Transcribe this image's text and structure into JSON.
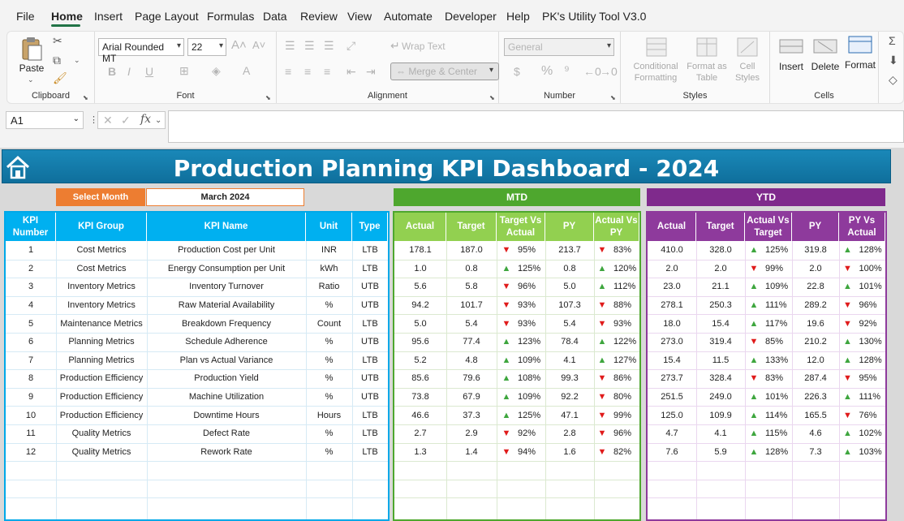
{
  "menu": [
    "File",
    "Home",
    "Insert",
    "Page Layout",
    "Formulas",
    "Data",
    "Review",
    "View",
    "Automate",
    "Developer",
    "Help",
    "PK's Utility Tool V3.0"
  ],
  "ribbon": {
    "clipboard": {
      "paste": "Paste",
      "label": "Clipboard"
    },
    "font": {
      "family": "Arial Rounded MT",
      "size": "22",
      "label": "Font"
    },
    "alignment": {
      "wrap": "Wrap Text",
      "merge": "Merge & Center",
      "label": "Alignment"
    },
    "number": {
      "format": "General",
      "label": "Number"
    },
    "styles": {
      "cond": "Conditional Formatting",
      "cond1": "Conditional",
      "cond2": "Formatting",
      "fmtas1": "Format as",
      "fmtas2": "Table",
      "cell1": "Cell",
      "cell2": "Styles",
      "label": "Styles"
    },
    "cells": {
      "insert": "Insert",
      "delete": "Delete",
      "format": "Format",
      "label": "Cells"
    }
  },
  "formula": {
    "namebox": "A1",
    "fx": "fx",
    "value": ""
  },
  "dashboard": {
    "title": "Production Planning KPI Dashboard - 2024",
    "select_label": "Select Month",
    "select_value": "March 2024",
    "mtd_title": "MTD",
    "ytd_title": "YTD",
    "colors": {
      "blue": "#00b0f0",
      "green": "#92d050",
      "green_dark": "#4ea72e",
      "purple": "#7f2a8c",
      "purple_hdr": "#8e3a9c",
      "orange": "#ed7d31",
      "banner": "#1582b3",
      "up": "#3ea63e",
      "down": "#e01b1b"
    },
    "left_headers": [
      "KPI Number",
      "KPI Group",
      "KPI Name",
      "Unit",
      "Type"
    ],
    "mtd_headers": [
      "Actual",
      "Target",
      "Target Vs Actual",
      "PY",
      "Actual Vs PY"
    ],
    "ytd_headers": [
      "Actual",
      "Target",
      "Actual Vs Target",
      "PY",
      "PY Vs Actual"
    ],
    "rows": [
      {
        "num": "1",
        "group": "Cost Metrics",
        "name": "Production Cost per Unit",
        "unit": "INR",
        "type": "LTB",
        "m_act": "178.1",
        "m_tgt": "187.0",
        "m_tva_dir": "down",
        "m_tva": "95%",
        "m_py": "213.7",
        "m_avp_dir": "down",
        "m_avp": "83%",
        "y_act": "410.0",
        "y_tgt": "328.0",
        "y_avt_dir": "up",
        "y_avt": "125%",
        "y_py": "319.8",
        "y_pva_dir": "up",
        "y_pva": "128%"
      },
      {
        "num": "2",
        "group": "Cost Metrics",
        "name": "Energy Consumption per Unit",
        "unit": "kWh",
        "type": "LTB",
        "m_act": "1.0",
        "m_tgt": "0.8",
        "m_tva_dir": "up",
        "m_tva": "125%",
        "m_py": "0.8",
        "m_avp_dir": "up",
        "m_avp": "120%",
        "y_act": "2.0",
        "y_tgt": "2.0",
        "y_avt_dir": "down",
        "y_avt": "99%",
        "y_py": "2.0",
        "y_pva_dir": "down",
        "y_pva": "100%"
      },
      {
        "num": "3",
        "group": "Inventory Metrics",
        "name": "Inventory Turnover",
        "unit": "Ratio",
        "type": "UTB",
        "m_act": "5.6",
        "m_tgt": "5.8",
        "m_tva_dir": "down",
        "m_tva": "96%",
        "m_py": "5.0",
        "m_avp_dir": "up",
        "m_avp": "112%",
        "y_act": "23.0",
        "y_tgt": "21.1",
        "y_avt_dir": "up",
        "y_avt": "109%",
        "y_py": "22.8",
        "y_pva_dir": "up",
        "y_pva": "101%"
      },
      {
        "num": "4",
        "group": "Inventory Metrics",
        "name": "Raw Material Availability",
        "unit": "%",
        "type": "UTB",
        "m_act": "94.2",
        "m_tgt": "101.7",
        "m_tva_dir": "down",
        "m_tva": "93%",
        "m_py": "107.3",
        "m_avp_dir": "down",
        "m_avp": "88%",
        "y_act": "278.1",
        "y_tgt": "250.3",
        "y_avt_dir": "up",
        "y_avt": "111%",
        "y_py": "289.2",
        "y_pva_dir": "down",
        "y_pva": "96%"
      },
      {
        "num": "5",
        "group": "Maintenance Metrics",
        "name": "Breakdown Frequency",
        "unit": "Count",
        "type": "LTB",
        "m_act": "5.0",
        "m_tgt": "5.4",
        "m_tva_dir": "down",
        "m_tva": "93%",
        "m_py": "5.4",
        "m_avp_dir": "down",
        "m_avp": "93%",
        "y_act": "18.0",
        "y_tgt": "15.4",
        "y_avt_dir": "up",
        "y_avt": "117%",
        "y_py": "19.6",
        "y_pva_dir": "down",
        "y_pva": "92%"
      },
      {
        "num": "6",
        "group": "Planning Metrics",
        "name": "Schedule Adherence",
        "unit": "%",
        "type": "UTB",
        "m_act": "95.6",
        "m_tgt": "77.4",
        "m_tva_dir": "up",
        "m_tva": "123%",
        "m_py": "78.4",
        "m_avp_dir": "up",
        "m_avp": "122%",
        "y_act": "273.0",
        "y_tgt": "319.4",
        "y_avt_dir": "down",
        "y_avt": "85%",
        "y_py": "210.2",
        "y_pva_dir": "up",
        "y_pva": "130%"
      },
      {
        "num": "7",
        "group": "Planning Metrics",
        "name": "Plan vs Actual Variance",
        "unit": "%",
        "type": "LTB",
        "m_act": "5.2",
        "m_tgt": "4.8",
        "m_tva_dir": "up",
        "m_tva": "109%",
        "m_py": "4.1",
        "m_avp_dir": "up",
        "m_avp": "127%",
        "y_act": "15.4",
        "y_tgt": "11.5",
        "y_avt_dir": "up",
        "y_avt": "133%",
        "y_py": "12.0",
        "y_pva_dir": "up",
        "y_pva": "128%"
      },
      {
        "num": "8",
        "group": "Production Efficiency",
        "name": "Production Yield",
        "unit": "%",
        "type": "UTB",
        "m_act": "85.6",
        "m_tgt": "79.6",
        "m_tva_dir": "up",
        "m_tva": "108%",
        "m_py": "99.3",
        "m_avp_dir": "down",
        "m_avp": "86%",
        "y_act": "273.7",
        "y_tgt": "328.4",
        "y_avt_dir": "down",
        "y_avt": "83%",
        "y_py": "287.4",
        "y_pva_dir": "down",
        "y_pva": "95%"
      },
      {
        "num": "9",
        "group": "Production Efficiency",
        "name": "Machine Utilization",
        "unit": "%",
        "type": "UTB",
        "m_act": "73.8",
        "m_tgt": "67.9",
        "m_tva_dir": "up",
        "m_tva": "109%",
        "m_py": "92.2",
        "m_avp_dir": "down",
        "m_avp": "80%",
        "y_act": "251.5",
        "y_tgt": "249.0",
        "y_avt_dir": "up",
        "y_avt": "101%",
        "y_py": "226.3",
        "y_pva_dir": "up",
        "y_pva": "111%"
      },
      {
        "num": "10",
        "group": "Production Efficiency",
        "name": "Downtime Hours",
        "unit": "Hours",
        "type": "LTB",
        "m_act": "46.6",
        "m_tgt": "37.3",
        "m_tva_dir": "up",
        "m_tva": "125%",
        "m_py": "47.1",
        "m_avp_dir": "down",
        "m_avp": "99%",
        "y_act": "125.0",
        "y_tgt": "109.9",
        "y_avt_dir": "up",
        "y_avt": "114%",
        "y_py": "165.5",
        "y_pva_dir": "down",
        "y_pva": "76%"
      },
      {
        "num": "11",
        "group": "Quality Metrics",
        "name": "Defect Rate",
        "unit": "%",
        "type": "LTB",
        "m_act": "2.7",
        "m_tgt": "2.9",
        "m_tva_dir": "down",
        "m_tva": "92%",
        "m_py": "2.8",
        "m_avp_dir": "down",
        "m_avp": "96%",
        "y_act": "4.7",
        "y_tgt": "4.1",
        "y_avt_dir": "up",
        "y_avt": "115%",
        "y_py": "4.6",
        "y_pva_dir": "up",
        "y_pva": "102%"
      },
      {
        "num": "12",
        "group": "Quality Metrics",
        "name": "Rework Rate",
        "unit": "%",
        "type": "LTB",
        "m_act": "1.3",
        "m_tgt": "1.4",
        "m_tva_dir": "down",
        "m_tva": "94%",
        "m_py": "1.6",
        "m_avp_dir": "down",
        "m_avp": "82%",
        "y_act": "7.6",
        "y_tgt": "5.9",
        "y_avt_dir": "up",
        "y_avt": "128%",
        "y_py": "7.3",
        "y_pva_dir": "up",
        "y_pva": "103%"
      }
    ]
  }
}
